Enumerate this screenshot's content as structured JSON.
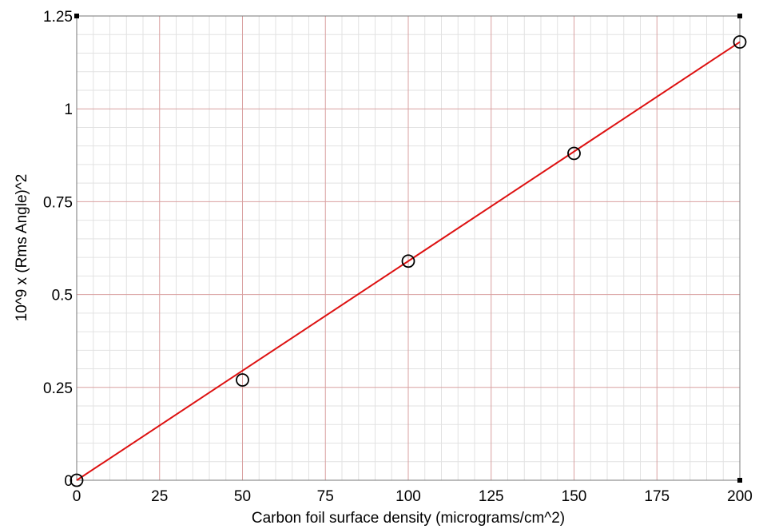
{
  "chart_data": {
    "type": "scatter",
    "title": "",
    "xlabel": "Carbon foil surface density (micrograms/cm^2)",
    "ylabel": "10^9 x (Rms Angle)^2",
    "xlim": [
      0,
      200
    ],
    "ylim": [
      0,
      1.25
    ],
    "x_ticks": [
      0,
      25,
      50,
      75,
      100,
      125,
      150,
      175,
      200
    ],
    "x_tick_labels": [
      "0",
      "25",
      "50",
      "75",
      "100",
      "125",
      "150",
      "175",
      "200"
    ],
    "y_ticks": [
      0,
      0.25,
      0.5,
      0.75,
      1,
      1.25
    ],
    "y_tick_labels": [
      "0",
      "0.25",
      "0.5",
      "0.75",
      "1",
      "1.25"
    ],
    "grid": true,
    "series": [
      {
        "kind": "points",
        "marker": "open-circle",
        "color": "#000000",
        "x": [
          0,
          50,
          100,
          150,
          200
        ],
        "y": [
          0,
          0.27,
          0.59,
          0.88,
          1.18
        ]
      },
      {
        "kind": "fit-line",
        "color": "#dd1111",
        "x": [
          0,
          200
        ],
        "y": [
          0,
          1.18
        ]
      }
    ]
  },
  "colors": {
    "major_grid": "#d9a0a0",
    "minor_grid": "#e2e2e2",
    "fit_line": "#dd1111",
    "marker": "#000000"
  }
}
